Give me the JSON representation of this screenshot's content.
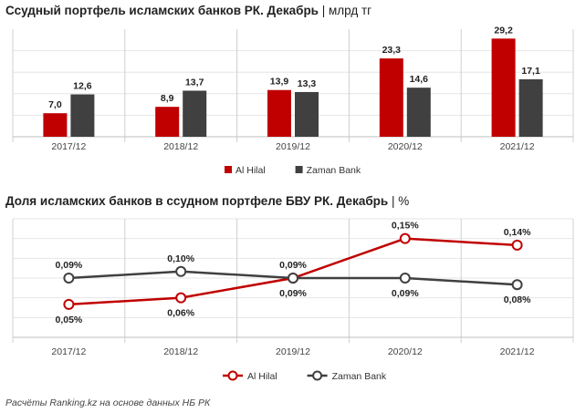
{
  "chart_data": [
    {
      "type": "bar",
      "title": "Ссудный портфель исламских банков РК. Декабрь",
      "unit": "млрд тг",
      "categories": [
        "2017/12",
        "2018/12",
        "2019/12",
        "2020/12",
        "2021/12"
      ],
      "series": [
        {
          "name": "Al Hilal",
          "color": "#c00000",
          "values": [
            7.0,
            8.9,
            13.9,
            23.3,
            29.2
          ],
          "labels": [
            "7,0",
            "8,9",
            "13,9",
            "23,3",
            "29,2"
          ]
        },
        {
          "name": "Zaman Bank",
          "color": "#404040",
          "values": [
            12.6,
            13.7,
            13.3,
            14.6,
            17.1
          ],
          "labels": [
            "12,6",
            "13,7",
            "13,3",
            "14,6",
            "17,1"
          ]
        }
      ],
      "ylim": [
        0,
        32
      ],
      "grid": true,
      "legend": "bottom-center"
    },
    {
      "type": "line",
      "title": "Доля исламских банков в ссудном портфеле БВУ РК. Декабрь",
      "unit": "%",
      "categories": [
        "2017/12",
        "2018/12",
        "2019/12",
        "2020/12",
        "2021/12"
      ],
      "series": [
        {
          "name": "Al Hilal",
          "color": "#c00000",
          "values": [
            0.05,
            0.06,
            0.09,
            0.15,
            0.14
          ],
          "labels": [
            "0,05%",
            "0,06%",
            "0,09%",
            "0,15%",
            "0,14%"
          ]
        },
        {
          "name": "Zaman Bank",
          "color": "#404040",
          "values": [
            0.09,
            0.1,
            0.09,
            0.09,
            0.08
          ],
          "labels": [
            "0,09%",
            "0,10%",
            "0,09%",
            "0,09%",
            "0,08%"
          ]
        }
      ],
      "ylim": [
        0.0,
        0.18
      ],
      "grid": true,
      "legend": "bottom-center"
    }
  ],
  "footer": "Расчёты Ranking.kz на основе данных НБ РК"
}
